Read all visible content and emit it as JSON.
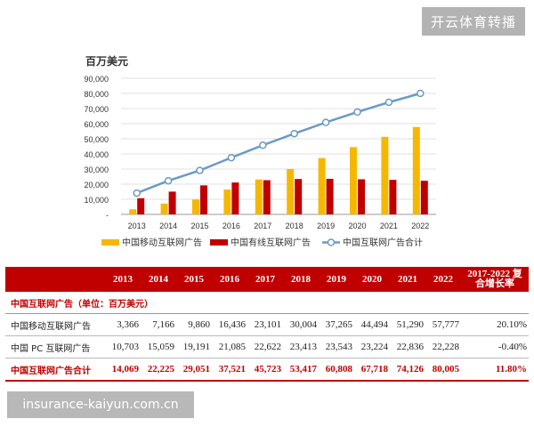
{
  "watermark_top": "开云体育转播",
  "watermark_bottom": "insurance-kaiyun.com.cn",
  "chart_data": {
    "type": "bar",
    "unit_label": "百万美元",
    "categories": [
      "2013",
      "2014",
      "2015",
      "2016",
      "2017",
      "2018",
      "2019",
      "2020",
      "2021",
      "2022"
    ],
    "ylim": [
      0,
      90000
    ],
    "yticks": [
      "-",
      "10,000",
      "20,000",
      "30,000",
      "40,000",
      "50,000",
      "60,000",
      "70,000",
      "80,000",
      "90,000"
    ],
    "grid": true,
    "legend_position": "bottom",
    "series": [
      {
        "name": "中国移动互联网广告",
        "kind": "bar",
        "color": "#f5b800",
        "values": [
          3366,
          7166,
          9860,
          16436,
          23101,
          30004,
          37265,
          44494,
          51290,
          57777
        ]
      },
      {
        "name": "中国有线互联网广告",
        "kind": "bar",
        "color": "#c00000",
        "values": [
          10703,
          15059,
          19191,
          21085,
          22622,
          23413,
          23543,
          23224,
          22836,
          22228
        ]
      },
      {
        "name": "中国互联网广告合计",
        "kind": "line",
        "color": "#6b9ac4",
        "values": [
          14069,
          22225,
          29051,
          37521,
          45723,
          53417,
          60808,
          67718,
          74126,
          80005
        ]
      }
    ]
  },
  "table": {
    "headers": [
      "",
      "2013",
      "2014",
      "2015",
      "2016",
      "2017",
      "2018",
      "2019",
      "2020",
      "2021",
      "2022",
      "2017-2022 复合增长率"
    ],
    "section_title": "中国互联网广告（单位：百万美元）",
    "rows": [
      {
        "label": "中国移动互联网广告",
        "values": [
          "3,366",
          "7,166",
          "9,860",
          "16,436",
          "23,101",
          "30,004",
          "37,265",
          "44,494",
          "51,290",
          "57,777"
        ],
        "cagr": "20.10%"
      },
      {
        "label": "中国 PC 互联网广告",
        "values": [
          "10,703",
          "15,059",
          "19,191",
          "21,085",
          "22,622",
          "23,413",
          "23,543",
          "23,224",
          "22,836",
          "22,228"
        ],
        "cagr": "-0.40%"
      },
      {
        "label": "中国互联网广告合计",
        "values": [
          "14,069",
          "22,225",
          "29,051",
          "37,521",
          "45,723",
          "53,417",
          "60,808",
          "67,718",
          "74,126",
          "80,005"
        ],
        "cagr": "11.80%"
      }
    ]
  }
}
